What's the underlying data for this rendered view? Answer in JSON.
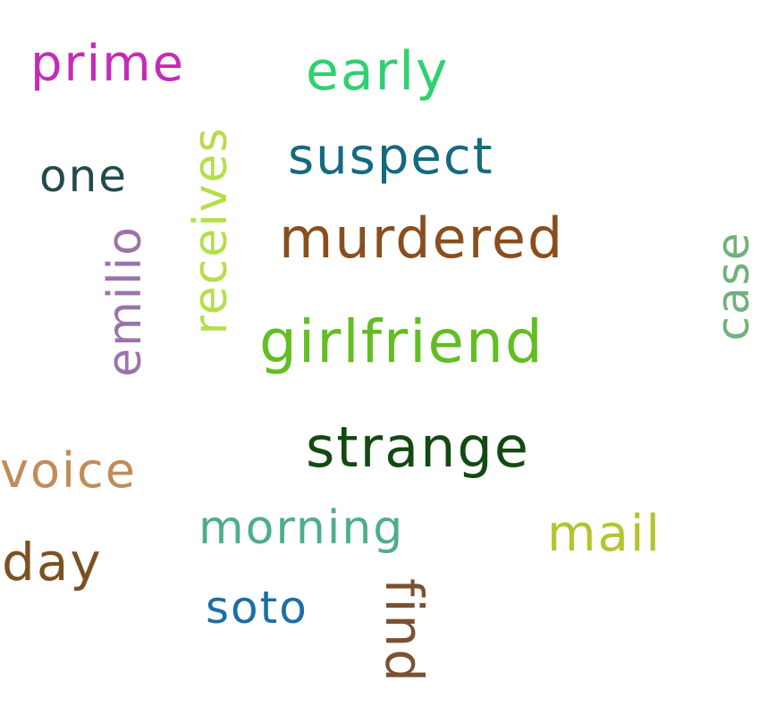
{
  "words": {
    "prime": {
      "text": "prime",
      "color": "#c42cb8"
    },
    "early": {
      "text": "early",
      "color": "#2fd070"
    },
    "suspect": {
      "text": "suspect",
      "color": "#146a7e"
    },
    "one": {
      "text": "one",
      "color": "#234a4a"
    },
    "receives": {
      "text": "receives",
      "color": "#b4de4a"
    },
    "murdered": {
      "text": "murdered",
      "color": "#8a4e1e"
    },
    "emilio": {
      "text": "emilio",
      "color": "#9a74a8"
    },
    "case": {
      "text": "case",
      "color": "#72b07c"
    },
    "girlfriend": {
      "text": "girlfriend",
      "color": "#62be22"
    },
    "strange": {
      "text": "strange",
      "color": "#124a12"
    },
    "voice": {
      "text": "voice",
      "color": "#c08c58"
    },
    "morning": {
      "text": "morning",
      "color": "#4eae8a"
    },
    "mail": {
      "text": "mail",
      "color": "#b4c42e"
    },
    "day": {
      "text": "day",
      "color": "#7a5222"
    },
    "soto": {
      "text": "soto",
      "color": "#1c6ea6"
    },
    "find": {
      "text": "find",
      "color": "#7a5232"
    }
  }
}
